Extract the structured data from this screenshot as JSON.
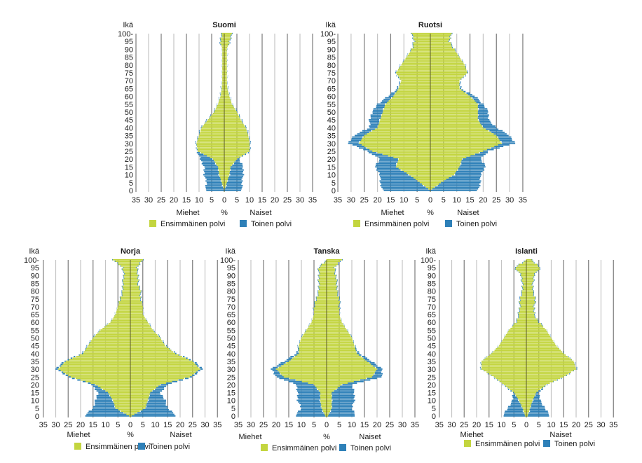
{
  "colors": {
    "first": "#c3d53f",
    "second": "#2e80b8",
    "grid_dark": "#7a7a7a",
    "grid_light": "#c4c4c4",
    "center": "#5a5a2a"
  },
  "legend": {
    "first": "Ensimmäinen polvi",
    "second": "Toinen polvi"
  },
  "chart_data": [
    {
      "type": "bar",
      "title": "Suomi",
      "ylabel": "Ikä",
      "xlabel_left": "Miehet",
      "xlabel_center": "%",
      "xlabel_right": "Naiset",
      "xlim": [
        -35,
        35
      ],
      "xticks": [
        "35",
        "30",
        "25",
        "20",
        "15",
        "10",
        "5",
        "0",
        "5",
        "10",
        "15",
        "20",
        "25",
        "30",
        "35"
      ],
      "yticks": [
        "0",
        "5",
        "10",
        "15",
        "20",
        "25",
        "30",
        "35",
        "40",
        "45",
        "50",
        "55",
        "60",
        "65",
        "70",
        "75",
        "80",
        "85",
        "90",
        "95",
        "100-"
      ],
      "ages": [
        0,
        5,
        10,
        15,
        20,
        25,
        30,
        35,
        40,
        45,
        50,
        55,
        60,
        65,
        70,
        75,
        80,
        85,
        90,
        95,
        100
      ],
      "series": [
        {
          "name": "Miehet, Ensimmäinen polvi",
          "values": [
            0,
            1,
            2,
            2.5,
            4.5,
            10.5,
            11,
            10,
            9,
            6.5,
            4,
            2.5,
            1.5,
            1,
            0.8,
            0.8,
            0.8,
            0.8,
            0.8,
            1.5,
            1
          ]
        },
        {
          "name": "Miehet, Toinen polvi",
          "values": [
            7.5,
            6,
            6,
            5.5,
            5,
            0.3,
            0.3,
            0.3,
            0.3,
            0.3,
            0.3,
            0.2,
            0.2,
            0.2,
            0.1,
            0.1,
            0.1,
            0.1,
            0.1,
            0,
            0
          ]
        },
        {
          "name": "Naiset, Ensimmäinen polvi",
          "values": [
            0,
            1,
            2,
            2.5,
            5,
            10,
            10,
            9.5,
            8.5,
            6.5,
            5,
            3,
            2,
            1.2,
            1,
            1,
            1,
            1,
            1,
            2,
            3
          ]
        },
        {
          "name": "Naiset, Toinen polvi",
          "values": [
            7,
            6,
            5.5,
            5,
            0.8,
            0.3,
            0.3,
            0.3,
            0.3,
            0.3,
            0.3,
            0.2,
            0.2,
            0.2,
            0.1,
            0.1,
            0.1,
            0.1,
            0.1,
            0,
            0
          ]
        }
      ]
    },
    {
      "type": "bar",
      "title": "Ruotsi",
      "ylabel": "Ikä",
      "xlabel_left": "Miehet",
      "xlabel_center": "%",
      "xlabel_right": "Naiset",
      "xlim": [
        -35,
        35
      ],
      "xticks": [
        "35",
        "30",
        "25",
        "20",
        "15",
        "10",
        "5",
        "0",
        "5",
        "10",
        "15",
        "20",
        "25",
        "30",
        "35"
      ],
      "yticks": [
        "0",
        "5",
        "10",
        "15",
        "20",
        "25",
        "30",
        "35",
        "40",
        "45",
        "50",
        "55",
        "60",
        "65",
        "70",
        "75",
        "80",
        "85",
        "90",
        "95",
        "100-"
      ],
      "ages": [
        0,
        5,
        10,
        15,
        20,
        25,
        30,
        35,
        40,
        45,
        50,
        55,
        60,
        65,
        70,
        75,
        80,
        85,
        90,
        95,
        100
      ],
      "series": [
        {
          "name": "Miehet, Ensimmäinen polvi",
          "values": [
            0,
            4,
            8,
            13,
            12,
            22,
            27,
            25,
            20,
            19,
            18,
            17,
            14,
            12,
            11,
            13,
            11,
            9,
            7,
            6,
            7
          ]
        },
        {
          "name": "Miehet, Toinen polvi",
          "values": [
            18,
            15,
            11,
            8,
            7,
            2,
            4,
            4,
            3,
            4,
            4,
            3,
            2,
            0.5,
            0.3,
            0.3,
            0.2,
            0.2,
            0,
            0,
            0
          ]
        },
        {
          "name": "Naiset, Ensimmäinen polvi",
          "values": [
            0,
            4,
            9,
            11,
            12,
            20,
            27,
            25,
            20,
            18,
            18,
            18,
            15,
            11,
            11,
            14,
            13,
            11,
            9,
            7,
            8
          ]
        },
        {
          "name": "Naiset, Toinen polvi",
          "values": [
            18,
            15,
            10,
            10,
            7,
            2,
            5,
            5,
            5,
            4,
            4,
            2,
            2,
            0.5,
            0.3,
            0.3,
            0.2,
            0.2,
            0,
            0,
            0
          ]
        }
      ]
    },
    {
      "type": "bar",
      "title": "Norja",
      "ylabel": "Ikä",
      "xlabel_left": "Miehet",
      "xlabel_center": "%",
      "xlabel_right": "Naiset",
      "xlim": [
        -35,
        35
      ],
      "xticks": [
        "35",
        "30",
        "25",
        "20",
        "15",
        "10",
        "5",
        "0",
        "5",
        "10",
        "15",
        "20",
        "25",
        "30",
        "35"
      ],
      "yticks": [
        "0",
        "5",
        "10",
        "15",
        "20",
        "25",
        "30",
        "35",
        "40",
        "45",
        "50",
        "55",
        "60",
        "65",
        "70",
        "75",
        "80",
        "85",
        "90",
        "95",
        "100-"
      ],
      "ages": [
        0,
        5,
        10,
        15,
        20,
        25,
        30,
        35,
        40,
        45,
        50,
        55,
        60,
        65,
        70,
        75,
        80,
        85,
        90,
        95,
        100
      ],
      "series": [
        {
          "name": "Miehet, Ensimmäinen polvi",
          "values": [
            0.5,
            6,
            7,
            9,
            14,
            24,
            29,
            26,
            19,
            17,
            15,
            12,
            8,
            6,
            5,
            4,
            3,
            3,
            2.5,
            3,
            7
          ]
        },
        {
          "name": "Miehet, Toinen polvi",
          "values": [
            18,
            9,
            7,
            4,
            1.5,
            1,
            1,
            0.8,
            0.5,
            0.3,
            0.3,
            0.2,
            0.2,
            0.1,
            0.1,
            0,
            0,
            0,
            0,
            0,
            0
          ]
        },
        {
          "name": "Naiset, Ensimmäinen polvi",
          "values": [
            0.5,
            6,
            7,
            8,
            12,
            24,
            28,
            25,
            18,
            14,
            12,
            9,
            7,
            5,
            5,
            4,
            4,
            3,
            3,
            2.5,
            5
          ]
        },
        {
          "name": "Naiset, Toinen polvi",
          "values": [
            18,
            9,
            7,
            4,
            3,
            1,
            1,
            0.8,
            0.5,
            0.3,
            0.3,
            0.2,
            0.2,
            0.1,
            0.1,
            0,
            0,
            0,
            0,
            0,
            0
          ]
        }
      ]
    },
    {
      "type": "bar",
      "title": "Tanska",
      "ylabel": "Ikä",
      "xlabel_left": "Miehet",
      "xlabel_center": "%",
      "xlabel_right": "Naiset",
      "xlim": [
        -35,
        35
      ],
      "xticks": [
        "35",
        "30",
        "25",
        "20",
        "15",
        "10",
        "5",
        "0",
        "5",
        "10",
        "15",
        "20",
        "25",
        "30",
        "35"
      ],
      "yticks": [
        "0",
        "5",
        "10",
        "15",
        "20",
        "25",
        "30",
        "35",
        "40",
        "45",
        "50",
        "55",
        "60",
        "65",
        "70",
        "75",
        "80",
        "85",
        "90",
        "95",
        "100-"
      ],
      "ages": [
        0,
        5,
        10,
        15,
        20,
        25,
        30,
        35,
        40,
        45,
        50,
        55,
        60,
        65,
        70,
        75,
        80,
        85,
        90,
        95,
        100
      ],
      "series": [
        {
          "name": "Miehet, Ensimmäinen polvi",
          "values": [
            0.5,
            2,
            2.5,
            2.5,
            5,
            17,
            20,
            15,
            11,
            11,
            10,
            8,
            6,
            5,
            5,
            4,
            3,
            3,
            3,
            3,
            0
          ]
        },
        {
          "name": "Miehet, Toinen polvi",
          "values": [
            12,
            8,
            9,
            9,
            7,
            3,
            2,
            2,
            1,
            0.2,
            0.2,
            0.2,
            0.1,
            0.1,
            0,
            0,
            0,
            0,
            0,
            0,
            0
          ]
        },
        {
          "name": "Naiset, Ensimmäinen polvi",
          "values": [
            0.5,
            2,
            2,
            2,
            6,
            18,
            20,
            16,
            12,
            11,
            10,
            8,
            6,
            5,
            5,
            5,
            4,
            4,
            3.5,
            3,
            6
          ]
        },
        {
          "name": "Naiset, Toinen polvi",
          "values": [
            11,
            8,
            9,
            9,
            4,
            4,
            2,
            2,
            1,
            0.2,
            0.2,
            0.2,
            0.1,
            0.1,
            0,
            0,
            0,
            0,
            0,
            0,
            0
          ]
        }
      ]
    },
    {
      "type": "bar",
      "title": "Islanti",
      "ylabel": "Ikä",
      "xlabel_left": "Miehet",
      "xlabel_center": "",
      "xlabel_right": "Naiset",
      "xlim": [
        -35,
        35
      ],
      "xticks": [
        "35",
        "30",
        "25",
        "20",
        "15",
        "10",
        "5",
        "0",
        "5",
        "10",
        "15",
        "20",
        "25",
        "30",
        "35"
      ],
      "yticks": [
        "0",
        "5",
        "10",
        "15",
        "20",
        "25",
        "30",
        "35",
        "40",
        "45",
        "50",
        "55",
        "60",
        "65",
        "70",
        "75",
        "80",
        "85",
        "90",
        "95",
        "100-"
      ],
      "ages": [
        0,
        5,
        10,
        15,
        20,
        25,
        30,
        35,
        40,
        45,
        50,
        55,
        60,
        65,
        70,
        75,
        80,
        85,
        90,
        95,
        100
      ],
      "series": [
        {
          "name": "Miehet, Ensimmäinen polvi",
          "values": [
            0.5,
            1.5,
            3,
            5,
            9,
            13,
            18,
            18,
            14,
            11,
            9,
            7,
            4,
            3,
            2.5,
            2.5,
            1.5,
            1.5,
            2,
            4.5,
            0
          ]
        },
        {
          "name": "Miehet, Toinen polvi",
          "values": [
            9,
            6,
            2.5,
            0.5,
            0.3,
            0.3,
            0.3,
            0.2,
            0.2,
            0.1,
            0.1,
            0.1,
            0,
            0,
            0,
            0,
            0,
            0,
            0,
            0,
            0
          ]
        },
        {
          "name": "Naiset, Ensimmäinen polvi",
          "values": [
            0.5,
            1.5,
            2.5,
            4,
            8,
            15,
            20,
            19,
            15,
            12,
            10,
            8,
            5,
            3,
            3,
            3.5,
            2.5,
            2.5,
            3,
            5.5,
            2
          ]
        },
        {
          "name": "Naiset, Toinen polvi",
          "values": [
            9,
            6,
            3,
            1,
            0.3,
            0.3,
            0.3,
            0.2,
            0.2,
            0.1,
            0.1,
            0.1,
            0,
            0,
            0,
            0,
            0,
            0,
            0,
            0,
            0
          ]
        }
      ]
    }
  ]
}
